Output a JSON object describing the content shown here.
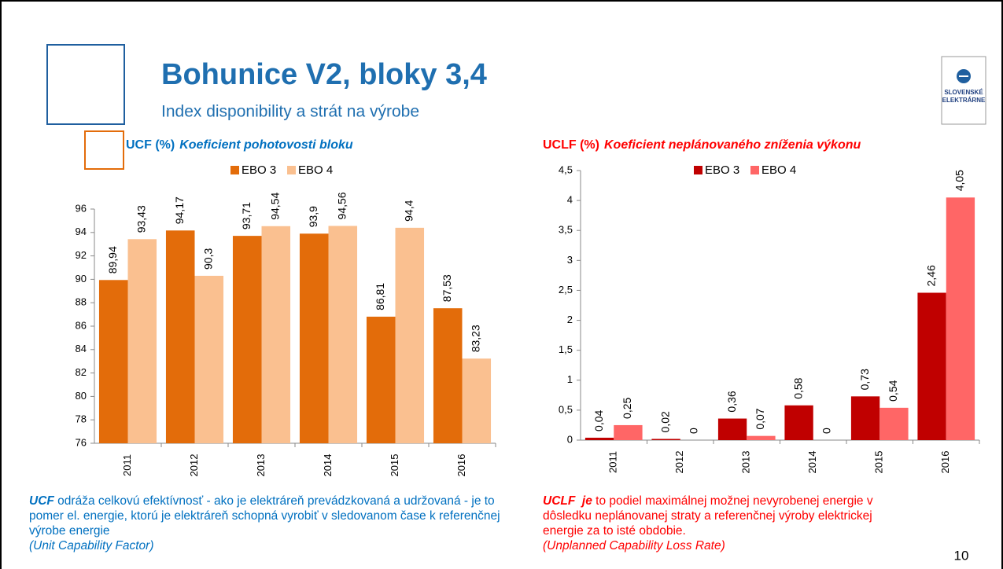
{
  "header": {
    "title": "Bohunice V2, bloky 3,4",
    "subtitle": "Index disponibility a strát na výrobe",
    "logo": [
      "SLOVENSKÉ",
      "ELEKTRÁRNE"
    ],
    "page": "10"
  },
  "chart_data": [
    {
      "type": "bar",
      "title": "UCF (%)",
      "subtitle": "Koeficient pohotovosti bloku",
      "title_color": "#0070c0",
      "categories": [
        "2011",
        "2012",
        "2013",
        "2014",
        "2015",
        "2016"
      ],
      "series": [
        {
          "name": "EBO 3",
          "color": "#e36c0a",
          "values": [
            89.94,
            94.17,
            93.71,
            93.9,
            86.81,
            87.53
          ],
          "value_labels": [
            "89,94",
            "94,17",
            "93,71",
            "93,9",
            "86,81",
            "87,53"
          ]
        },
        {
          "name": "EBO 4",
          "color": "#fac090",
          "values": [
            93.43,
            90.3,
            94.54,
            94.56,
            94.4,
            83.23
          ],
          "value_labels": [
            "93,43",
            "90,3",
            "94,54",
            "94,56",
            "94,4",
            "83,23"
          ]
        }
      ],
      "ylim": [
        76,
        96
      ],
      "yticks": [
        76,
        78,
        80,
        82,
        84,
        86,
        88,
        90,
        92,
        94,
        96
      ]
    },
    {
      "type": "bar",
      "title": "UCLF (%)",
      "subtitle": "Koeficient neplánovaného zníženia výkonu",
      "title_color": "#ff0000",
      "categories": [
        "2011",
        "2012",
        "2013",
        "2014",
        "2015",
        "2016"
      ],
      "series": [
        {
          "name": "EBO 3",
          "color": "#c00000",
          "values": [
            0.04,
            0.02,
            0.36,
            0.58,
            0.73,
            2.46
          ],
          "value_labels": [
            "0,04",
            "0,02",
            "0,36",
            "0,58",
            "0,73",
            "2,46"
          ]
        },
        {
          "name": "EBO 4",
          "color": "#ff6666",
          "values": [
            0.25,
            0,
            0.07,
            0,
            0.54,
            4.05
          ],
          "value_labels": [
            "0,25",
            "0",
            "0,07",
            "0",
            "0,54",
            "4,05"
          ]
        }
      ],
      "ylim": [
        0,
        4.5
      ],
      "yticks": [
        0,
        {
          "value": 0.5,
          "label": "0,5"
        },
        1,
        {
          "value": 1.5,
          "label": "1,5"
        },
        2,
        {
          "value": 2.5,
          "label": "2,5"
        },
        3,
        {
          "value": 3.5,
          "label": "3,5"
        },
        4,
        {
          "value": 4.5,
          "label": "4,5"
        }
      ]
    }
  ],
  "notes": [
    {
      "term": "UCF",
      "text": " odráža celkovú efektívnosť - ako je elektráreň prevádzkovaná a udržovaná - je to pomer el. energie, ktorú je elektráreň schopná vyrobiť v sledovanom čase k referenčnej výrobe energie",
      "source": "(Unit Capability Factor)"
    },
    {
      "term": "UCLF  je",
      "text": " to podiel maximálnej možnej nevyrobenej energie v dôsledku neplánovanej straty a referenčnej výroby elektrickej energie za to isté obdobie.",
      "source": "(Unplanned Capability Loss Rate)"
    }
  ]
}
